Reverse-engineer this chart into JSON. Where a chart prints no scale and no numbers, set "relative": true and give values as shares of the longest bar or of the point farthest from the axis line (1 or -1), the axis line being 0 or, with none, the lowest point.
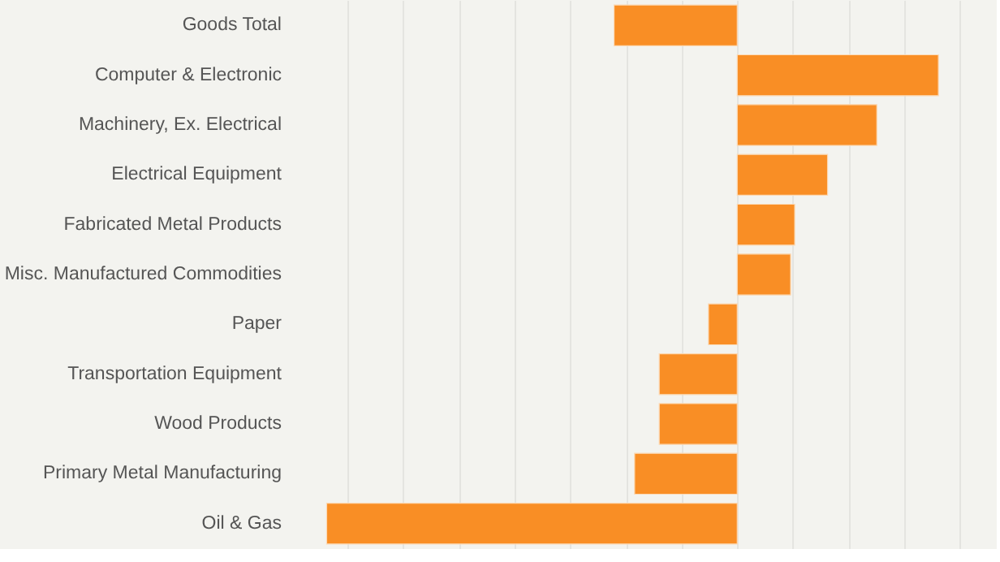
{
  "chart_data": {
    "type": "bar",
    "orientation": "horizontal",
    "relative": true,
    "grid": true,
    "tick_labels": "y",
    "color": "#f98e25",
    "categories": [
      "Goods Total",
      "Computer & Electronic",
      "Machinery, Ex. Electrical",
      "Electrical Equipment",
      "Fabricated Metal Products",
      "Misc. Manufactured Commodities",
      "Paper",
      "Transportation Equipment",
      "Wood Products",
      "Primary Metal Manufacturing",
      "Oil & Gas"
    ],
    "values": [
      -0.3,
      0.49,
      0.34,
      0.22,
      0.14,
      0.13,
      -0.07,
      -0.19,
      -0.19,
      -0.25,
      -1
    ]
  }
}
